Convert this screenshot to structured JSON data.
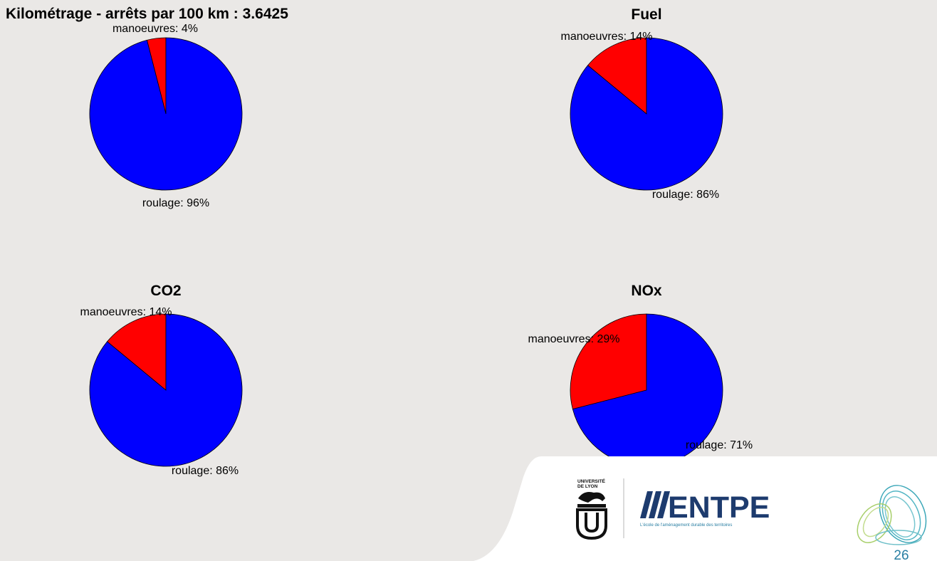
{
  "chart_data": [
    {
      "type": "pie",
      "title": "Kilométrage - arrêts par 100 km : 3.6425",
      "slices": [
        {
          "name": "manoeuvres",
          "label": "manoeuvres: 4%",
          "value": 4,
          "color": "#ff0000"
        },
        {
          "name": "roulage",
          "label": "roulage: 96%",
          "value": 96,
          "color": "#0000ff"
        }
      ]
    },
    {
      "type": "pie",
      "title": "Fuel",
      "slices": [
        {
          "name": "manoeuvres",
          "label": "manoeuvres: 14%",
          "value": 14,
          "color": "#ff0000"
        },
        {
          "name": "roulage",
          "label": "roulage: 86%",
          "value": 86,
          "color": "#0000ff"
        }
      ]
    },
    {
      "type": "pie",
      "title": "CO2",
      "slices": [
        {
          "name": "manoeuvres",
          "label": "manoeuvres: 14%",
          "value": 14,
          "color": "#ff0000"
        },
        {
          "name": "roulage",
          "label": "roulage: 86%",
          "value": 86,
          "color": "#0000ff"
        }
      ]
    },
    {
      "type": "pie",
      "title": "NOx",
      "slices": [
        {
          "name": "manoeuvres",
          "label": "manoeuvres: 29%",
          "value": 29,
          "color": "#ff0000"
        },
        {
          "name": "roulage",
          "label": "roulage: 71%",
          "value": 71,
          "color": "#0000ff"
        }
      ]
    }
  ],
  "footer": {
    "university_logo_text": "UNIVERSITÉ DE LYON",
    "school_name": "ENTPE",
    "school_tagline": "L'école de l'aménagement durable des territoires",
    "page_number": "26"
  }
}
